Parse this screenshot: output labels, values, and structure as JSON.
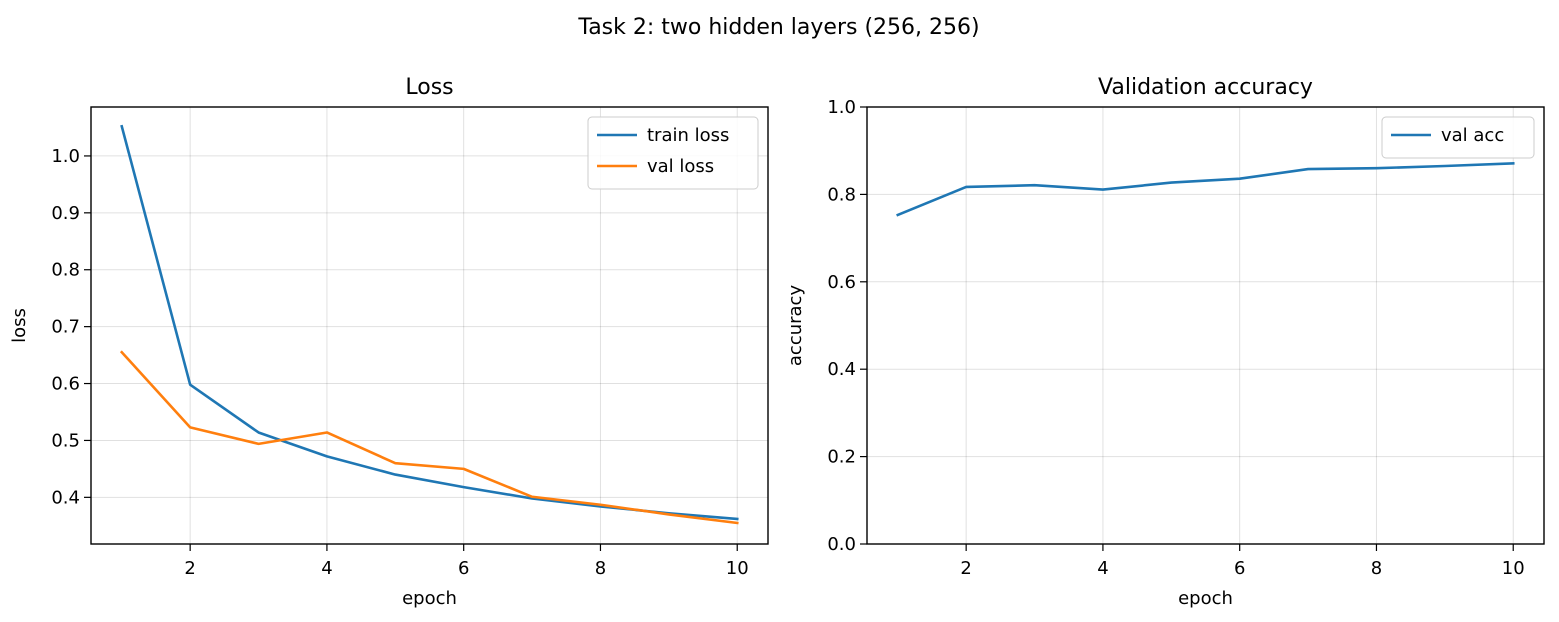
{
  "figure": {
    "title": "Task 2: two hidden layers (256, 256)"
  },
  "chart_data": [
    {
      "type": "line",
      "title": "Loss",
      "xlabel": "epoch",
      "ylabel": "loss",
      "x": [
        1,
        2,
        3,
        4,
        5,
        6,
        7,
        8,
        9,
        10
      ],
      "xlim": [
        0.55,
        10.45
      ],
      "ylim": [
        0.318,
        1.086
      ],
      "xticks": [
        2,
        4,
        6,
        8,
        10
      ],
      "yticks": [
        0.4,
        0.5,
        0.6,
        0.7,
        0.8,
        0.9,
        1.0
      ],
      "xtick_labels": [
        "2",
        "4",
        "6",
        "8",
        "10"
      ],
      "ytick_labels": [
        "0.4",
        "0.5",
        "0.6",
        "0.7",
        "0.8",
        "0.9",
        "1.0"
      ],
      "grid": true,
      "legend": "top-right",
      "series": [
        {
          "name": "train loss",
          "color": "#1f77b4",
          "values": [
            1.052,
            0.598,
            0.514,
            0.472,
            0.44,
            0.418,
            0.398,
            0.384,
            0.372,
            0.362
          ]
        },
        {
          "name": "val loss",
          "color": "#ff7f0e",
          "values": [
            0.655,
            0.523,
            0.494,
            0.514,
            0.46,
            0.45,
            0.401,
            0.387,
            0.37,
            0.355
          ]
        }
      ]
    },
    {
      "type": "line",
      "title": "Validation accuracy",
      "xlabel": "epoch",
      "ylabel": "accuracy",
      "x": [
        1,
        2,
        3,
        4,
        5,
        6,
        7,
        8,
        9,
        10
      ],
      "xlim": [
        0.55,
        10.45
      ],
      "ylim": [
        0.0,
        1.0
      ],
      "xticks": [
        2,
        4,
        6,
        8,
        10
      ],
      "yticks": [
        0.0,
        0.2,
        0.4,
        0.6,
        0.8,
        1.0
      ],
      "xtick_labels": [
        "2",
        "4",
        "6",
        "8",
        "10"
      ],
      "ytick_labels": [
        "0.0",
        "0.2",
        "0.4",
        "0.6",
        "0.8",
        "1.0"
      ],
      "grid": true,
      "legend": "top-right",
      "series": [
        {
          "name": "val acc",
          "color": "#1f77b4",
          "values": [
            0.753,
            0.817,
            0.821,
            0.811,
            0.827,
            0.836,
            0.858,
            0.86,
            0.865,
            0.871
          ]
        }
      ]
    }
  ]
}
